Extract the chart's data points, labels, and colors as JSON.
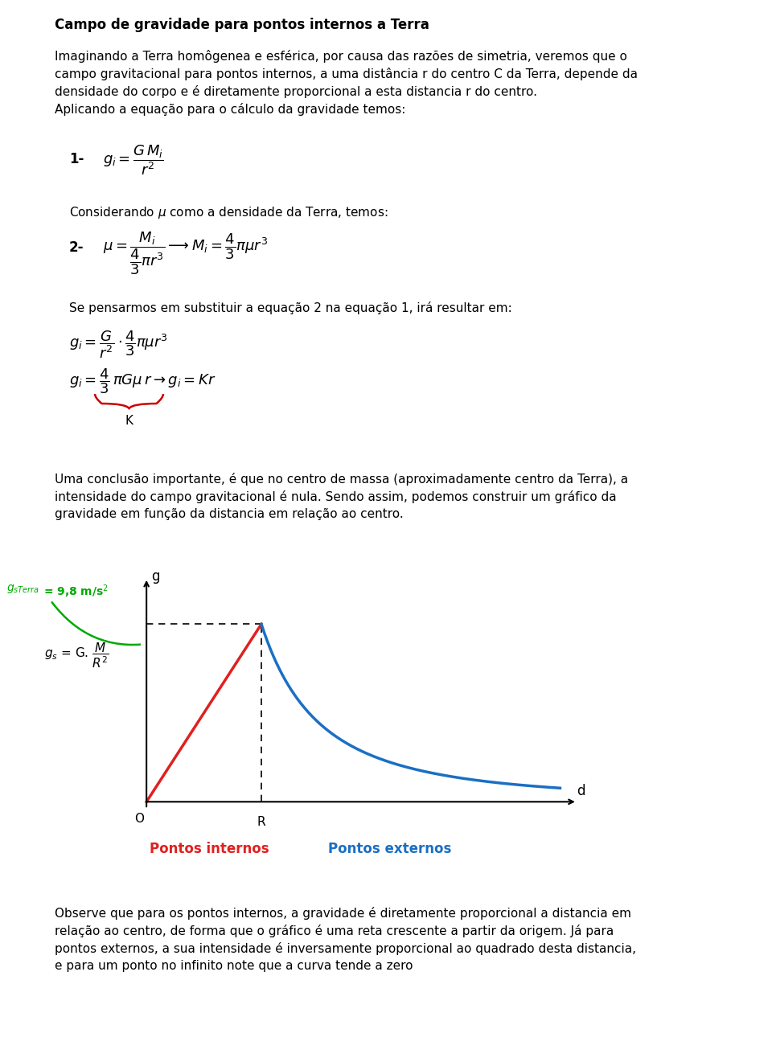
{
  "title": "Campo de gravidade para pontos internos a Terra",
  "bg_color": "#ffffff",
  "text_color": "#000000",
  "para1_lines": [
    "Imaginando a Terra homôgenea e esférica, por causa das razões de simetria, veremos que o",
    "campo gravitacional para pontos internos, a uma distância r do centro C da Terra, depende da",
    "densidade do corpo e é diretamente proporcional a esta distancia r do centro.",
    "Aplicando a equação para o cálculo da gravidade temos:"
  ],
  "eq1_label": "1-",
  "eq1": "$g_i = \\dfrac{G\\,M_i}{r^2}$",
  "eq2_intro": "Considerando $\\mu$ como a densidade da Terra, temos:",
  "eq2_label": "2-",
  "eq2": "$\\mu = \\dfrac{M_i}{\\dfrac{4}{3}\\pi r^3} \\longrightarrow M_i = \\dfrac{4}{3}\\pi\\mu r^3$",
  "eq3_intro": "Se pensarmos em substituir a equação 2 na equação 1, irá resultar em:",
  "eq3a": "$g_i = \\dfrac{G}{r^2}\\cdot\\dfrac{4}{3}\\pi\\mu r^3$",
  "eq3b": "$g_i = \\dfrac{4}{3}\\,\\pi G\\mu\\, r \\rightarrow g_i = Kr$",
  "brace_label": "K",
  "conclusion_lines": [
    "Uma conclusão importante, é que no centro de massa (aproximadamente centro da Terra), a",
    "intensidade do campo gravitacional é nula. Sendo assim, podemos construir um gráfico da",
    "gravidade em função da distancia em relação ao centro."
  ],
  "graph_xlabel": "d",
  "graph_ylabel": "g",
  "graph_origin_label": "O",
  "graph_R_label": "R",
  "label_gsTerra_part1": "$g_{sTerra}$",
  "label_gsTerra_part2": "= 9,8 m/s$^2$",
  "label_gs": "$g_s$ = G. $\\dfrac{M}{R^2}$",
  "label_pontos_internos": "Pontos internos",
  "label_pontos_externos": "Pontos externos",
  "pontos_internos_color": "#e02020",
  "pontos_externos_color": "#1a6fc4",
  "gsTerra_color": "#00aa00",
  "obs_lines": [
    "Observe que para os pontos internos, a gravidade é diretamente proporcional a distancia em",
    "relação ao centro, de forma que o gráfico é uma reta crescente a partir da origem. Já para",
    "pontos externos, a sua intensidade é inversamente proporcional ao quadrado desta distancia,",
    "e para um ponto no infinito note que a curva tende a zero"
  ]
}
